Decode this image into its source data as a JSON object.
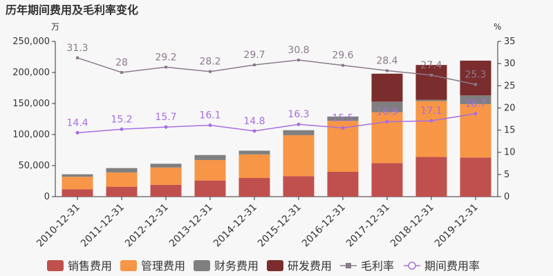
{
  "chart_data": {
    "type": "bar",
    "title": "历年期间费用及毛利率变化",
    "left_unit": "万",
    "right_unit": "%",
    "categories": [
      "2010-12-31",
      "2011-12-31",
      "2012-12-31",
      "2013-12-31",
      "2014-12-31",
      "2015-12-31",
      "2016-12-31",
      "2017-12-31",
      "2018-12-31",
      "2019-12-31"
    ],
    "left_ylim": [
      0,
      250000
    ],
    "left_ticks": [
      "0",
      "50,000",
      "100,000",
      "150,000",
      "200,000",
      "250,000"
    ],
    "right_ylim": [
      0,
      35
    ],
    "right_ticks": [
      "0",
      "5",
      "10",
      "15",
      "20",
      "25",
      "30",
      "35"
    ],
    "stacked_series": [
      {
        "name": "销售费用",
        "color": "#c0504d",
        "values": [
          12000,
          16000,
          19000,
          26000,
          30000,
          33000,
          40000,
          54000,
          64000,
          63000
        ]
      },
      {
        "name": "管理费用",
        "color": "#f79646",
        "values": [
          20000,
          23000,
          28000,
          33000,
          38000,
          66000,
          82000,
          82000,
          90000,
          86000
        ]
      },
      {
        "name": "财务费用",
        "color": "#7f7f7f",
        "values": [
          4000,
          7000,
          6000,
          8000,
          6000,
          8000,
          7000,
          17000,
          2000,
          14000
        ]
      },
      {
        "name": "研发费用",
        "color": "#7b2c2c",
        "values": [
          0,
          0,
          0,
          0,
          0,
          0,
          0,
          45000,
          56000,
          56000
        ]
      }
    ],
    "line_series": [
      {
        "name": "毛利率",
        "color": "#8a7a8a",
        "marker": "square",
        "values": [
          31.3,
          28,
          29.2,
          28.2,
          29.7,
          30.8,
          29.6,
          28.4,
          27.4,
          25.3
        ]
      },
      {
        "name": "期间费用率",
        "color": "#a66ee0",
        "marker": "circle",
        "values": [
          14.4,
          15.2,
          15.7,
          16.1,
          14.8,
          16.3,
          15.5,
          16.9,
          17.1,
          18.7
        ]
      }
    ],
    "value_labels": {
      "毛利率": [
        "31.3",
        "28",
        "29.2",
        "28.2",
        "29.7",
        "30.8",
        "29.6",
        "28.4",
        "27.4",
        "25.3"
      ],
      "期间费用率": [
        "14.4",
        "15.2",
        "15.7",
        "16.1",
        "14.8",
        "16.3",
        "15.5",
        "16.9",
        "17.1",
        "18.7"
      ]
    },
    "legend_position": "bottom"
  }
}
